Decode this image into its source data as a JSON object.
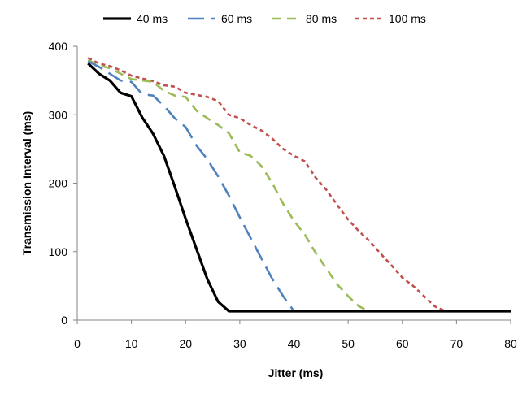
{
  "chart_data": {
    "type": "line",
    "xlabel": "Jitter (ms)",
    "ylabel": "Transmission Interval (ms)",
    "xlim": [
      0,
      80
    ],
    "ylim": [
      0,
      400
    ],
    "x_ticks": [
      "0",
      "10",
      "20",
      "30",
      "40",
      "50",
      "60",
      "70",
      "80"
    ],
    "y_ticks": [
      "0",
      "100",
      "200",
      "300",
      "400"
    ],
    "grid": false,
    "legend_position": "top",
    "series": [
      {
        "name": "40 ms",
        "color": "#000000",
        "dash": "solid",
        "x": [
          2,
          4,
          6,
          8,
          10,
          12,
          14,
          16,
          18,
          20,
          22,
          24,
          26,
          28,
          30,
          35,
          40,
          45,
          50,
          55,
          60,
          65,
          70,
          75,
          80
        ],
        "y": [
          375,
          360,
          350,
          332,
          327,
          296,
          272,
          240,
          195,
          148,
          104,
          60,
          27,
          13,
          13,
          13,
          13,
          13,
          13,
          13,
          13,
          13,
          13,
          13,
          13
        ]
      },
      {
        "name": "60 ms",
        "color": "#4F81BD",
        "dash": "long-dash",
        "x": [
          2,
          4,
          6,
          8,
          10,
          12,
          14,
          16,
          18,
          20,
          22,
          24,
          26,
          28,
          30,
          32,
          34,
          36,
          38,
          40,
          45,
          50,
          55,
          60,
          65,
          70,
          75,
          80
        ],
        "y": [
          378,
          370,
          360,
          350,
          348,
          330,
          328,
          313,
          295,
          282,
          255,
          235,
          210,
          182,
          150,
          120,
          90,
          60,
          35,
          13,
          13,
          13,
          13,
          13,
          13,
          13,
          13,
          13
        ]
      },
      {
        "name": "80 ms",
        "color": "#9BBB59",
        "dash": "medium-dash",
        "x": [
          2,
          4,
          6,
          8,
          10,
          12,
          14,
          16,
          18,
          20,
          22,
          24,
          26,
          28,
          30,
          32,
          34,
          36,
          38,
          40,
          42,
          44,
          46,
          48,
          50,
          52,
          54,
          60,
          70,
          80
        ],
        "y": [
          380,
          372,
          368,
          360,
          352,
          350,
          348,
          335,
          328,
          326,
          306,
          295,
          285,
          273,
          245,
          240,
          225,
          200,
          170,
          145,
          125,
          98,
          75,
          52,
          35,
          20,
          13,
          13,
          13,
          13
        ]
      },
      {
        "name": "100 ms",
        "color": "#C0504D",
        "dash": "short-dash",
        "x": [
          2,
          4,
          6,
          8,
          10,
          12,
          14,
          16,
          18,
          20,
          22,
          24,
          26,
          28,
          30,
          32,
          34,
          36,
          38,
          40,
          42,
          44,
          46,
          48,
          50,
          52,
          54,
          56,
          58,
          60,
          62,
          64,
          66,
          68,
          70,
          75,
          80
        ],
        "y": [
          383,
          375,
          371,
          365,
          357,
          353,
          349,
          343,
          341,
          332,
          329,
          326,
          320,
          300,
          295,
          285,
          277,
          265,
          250,
          240,
          232,
          208,
          190,
          168,
          147,
          130,
          115,
          97,
          80,
          62,
          50,
          35,
          20,
          13,
          13,
          13,
          13
        ]
      }
    ]
  }
}
